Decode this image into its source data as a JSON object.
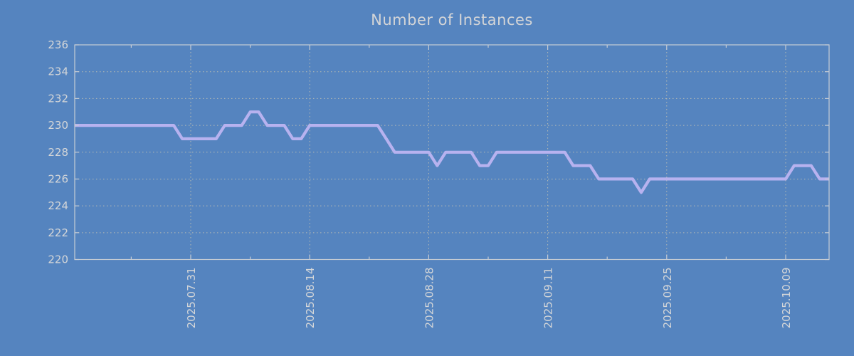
{
  "title": "Number of Instances",
  "colors": {
    "background": "#5584bf",
    "line": "#b7b2ef",
    "grid": "#c9c5b2",
    "axis": "#c6ccd4",
    "tick_text": "#d4d6d8",
    "title_text": "#d4d5d7"
  },
  "chart_data": {
    "type": "line",
    "title": "Number of Instances",
    "xlabel": "",
    "ylabel": "",
    "ylim": [
      220,
      236
    ],
    "y_ticks": [
      220,
      222,
      224,
      226,
      228,
      230,
      232,
      234,
      236
    ],
    "grid": true,
    "legend": "none",
    "x_major_ticks": [
      {
        "label": "2025.07.31",
        "date": "2025-07-31"
      },
      {
        "label": "2025.08.14",
        "date": "2025-08-14"
      },
      {
        "label": "2025.08.28",
        "date": "2025-08-28"
      },
      {
        "label": "2025.09.11",
        "date": "2025-09-11"
      },
      {
        "label": "2025.09.25",
        "date": "2025-09-25"
      },
      {
        "label": "2025.10.09",
        "date": "2025-10-09"
      }
    ],
    "x_minor_tick_dates": [
      "2025-07-24",
      "2025-08-07",
      "2025-08-21",
      "2025-09-04",
      "2025-09-18",
      "2025-10-02"
    ],
    "cadence_days": 1,
    "dates": [
      "2025-07-17",
      "2025-07-18",
      "2025-07-19",
      "2025-07-20",
      "2025-07-21",
      "2025-07-22",
      "2025-07-23",
      "2025-07-24",
      "2025-07-25",
      "2025-07-26",
      "2025-07-27",
      "2025-07-28",
      "2025-07-29",
      "2025-07-30",
      "2025-07-31",
      "2025-08-01",
      "2025-08-02",
      "2025-08-03",
      "2025-08-04",
      "2025-08-05",
      "2025-08-06",
      "2025-08-07",
      "2025-08-08",
      "2025-08-09",
      "2025-08-10",
      "2025-08-11",
      "2025-08-12",
      "2025-08-13",
      "2025-08-14",
      "2025-08-15",
      "2025-08-16",
      "2025-08-17",
      "2025-08-18",
      "2025-08-19",
      "2025-08-20",
      "2025-08-21",
      "2025-08-22",
      "2025-08-23",
      "2025-08-24",
      "2025-08-25",
      "2025-08-26",
      "2025-08-27",
      "2025-08-28",
      "2025-08-29",
      "2025-08-30",
      "2025-08-31",
      "2025-09-01",
      "2025-09-02",
      "2025-09-03",
      "2025-09-04",
      "2025-09-05",
      "2025-09-06",
      "2025-09-07",
      "2025-09-08",
      "2025-09-09",
      "2025-09-10",
      "2025-09-11",
      "2025-09-12",
      "2025-09-13",
      "2025-09-14",
      "2025-09-15",
      "2025-09-16",
      "2025-09-17",
      "2025-09-18",
      "2025-09-19",
      "2025-09-20",
      "2025-09-21",
      "2025-09-22",
      "2025-09-23",
      "2025-09-24",
      "2025-09-25",
      "2025-09-26",
      "2025-09-27",
      "2025-09-28",
      "2025-09-29",
      "2025-09-30",
      "2025-10-01",
      "2025-10-02",
      "2025-10-03",
      "2025-10-04",
      "2025-10-05",
      "2025-10-06",
      "2025-10-07",
      "2025-10-08",
      "2025-10-09",
      "2025-10-10",
      "2025-10-11",
      "2025-10-12",
      "2025-10-13",
      "2025-10-14"
    ],
    "values": [
      230,
      230,
      230,
      230,
      230,
      230,
      230,
      230,
      230,
      230,
      230,
      230,
      230,
      229,
      229,
      229,
      229,
      229,
      230,
      230,
      230,
      231,
      231,
      230,
      230,
      230,
      229,
      229,
      230,
      230,
      230,
      230,
      230,
      230,
      230,
      230,
      230,
      229,
      228,
      228,
      228,
      228,
      228,
      227,
      228,
      228,
      228,
      228,
      227,
      227,
      228,
      228,
      228,
      228,
      228,
      228,
      228,
      228,
      228,
      227,
      227,
      227,
      226,
      226,
      226,
      226,
      226,
      225,
      226,
      226,
      226,
      226,
      226,
      226,
      226,
      226,
      226,
      226,
      226,
      226,
      226,
      226,
      226,
      226,
      226,
      227,
      227,
      227,
      226,
      226
    ]
  }
}
